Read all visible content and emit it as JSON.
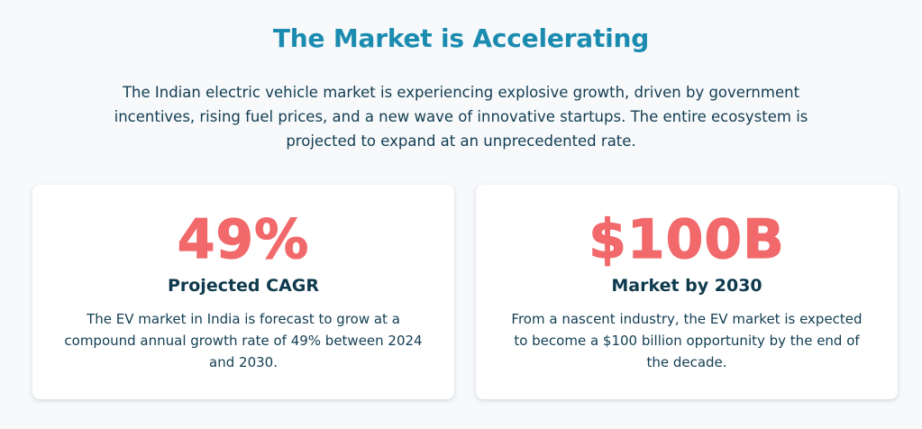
{
  "heading": "The Market is Accelerating",
  "intro": "The Indian electric vehicle market is experiencing explosive growth, driven by government incentives, rising fuel prices, and a new wave of innovative startups. The entire ecosystem is projected to expand at an unprecedented rate.",
  "cards": [
    {
      "value": "49%",
      "label": "Projected CAGR",
      "description": "The EV market in India is forecast to grow at a compound annual growth rate of 49% between 2024 and 2030."
    },
    {
      "value": "$100B",
      "label": "Market by 2030",
      "description": "From a nascent industry, the EV market is expected to become a $100 billion opportunity by the end of the decade."
    }
  ],
  "colors": {
    "heading": "#1b8cb0",
    "accent": "#f2696b",
    "text": "#0f3a4d",
    "background": "#f7f9fb",
    "card": "#ffffff"
  }
}
